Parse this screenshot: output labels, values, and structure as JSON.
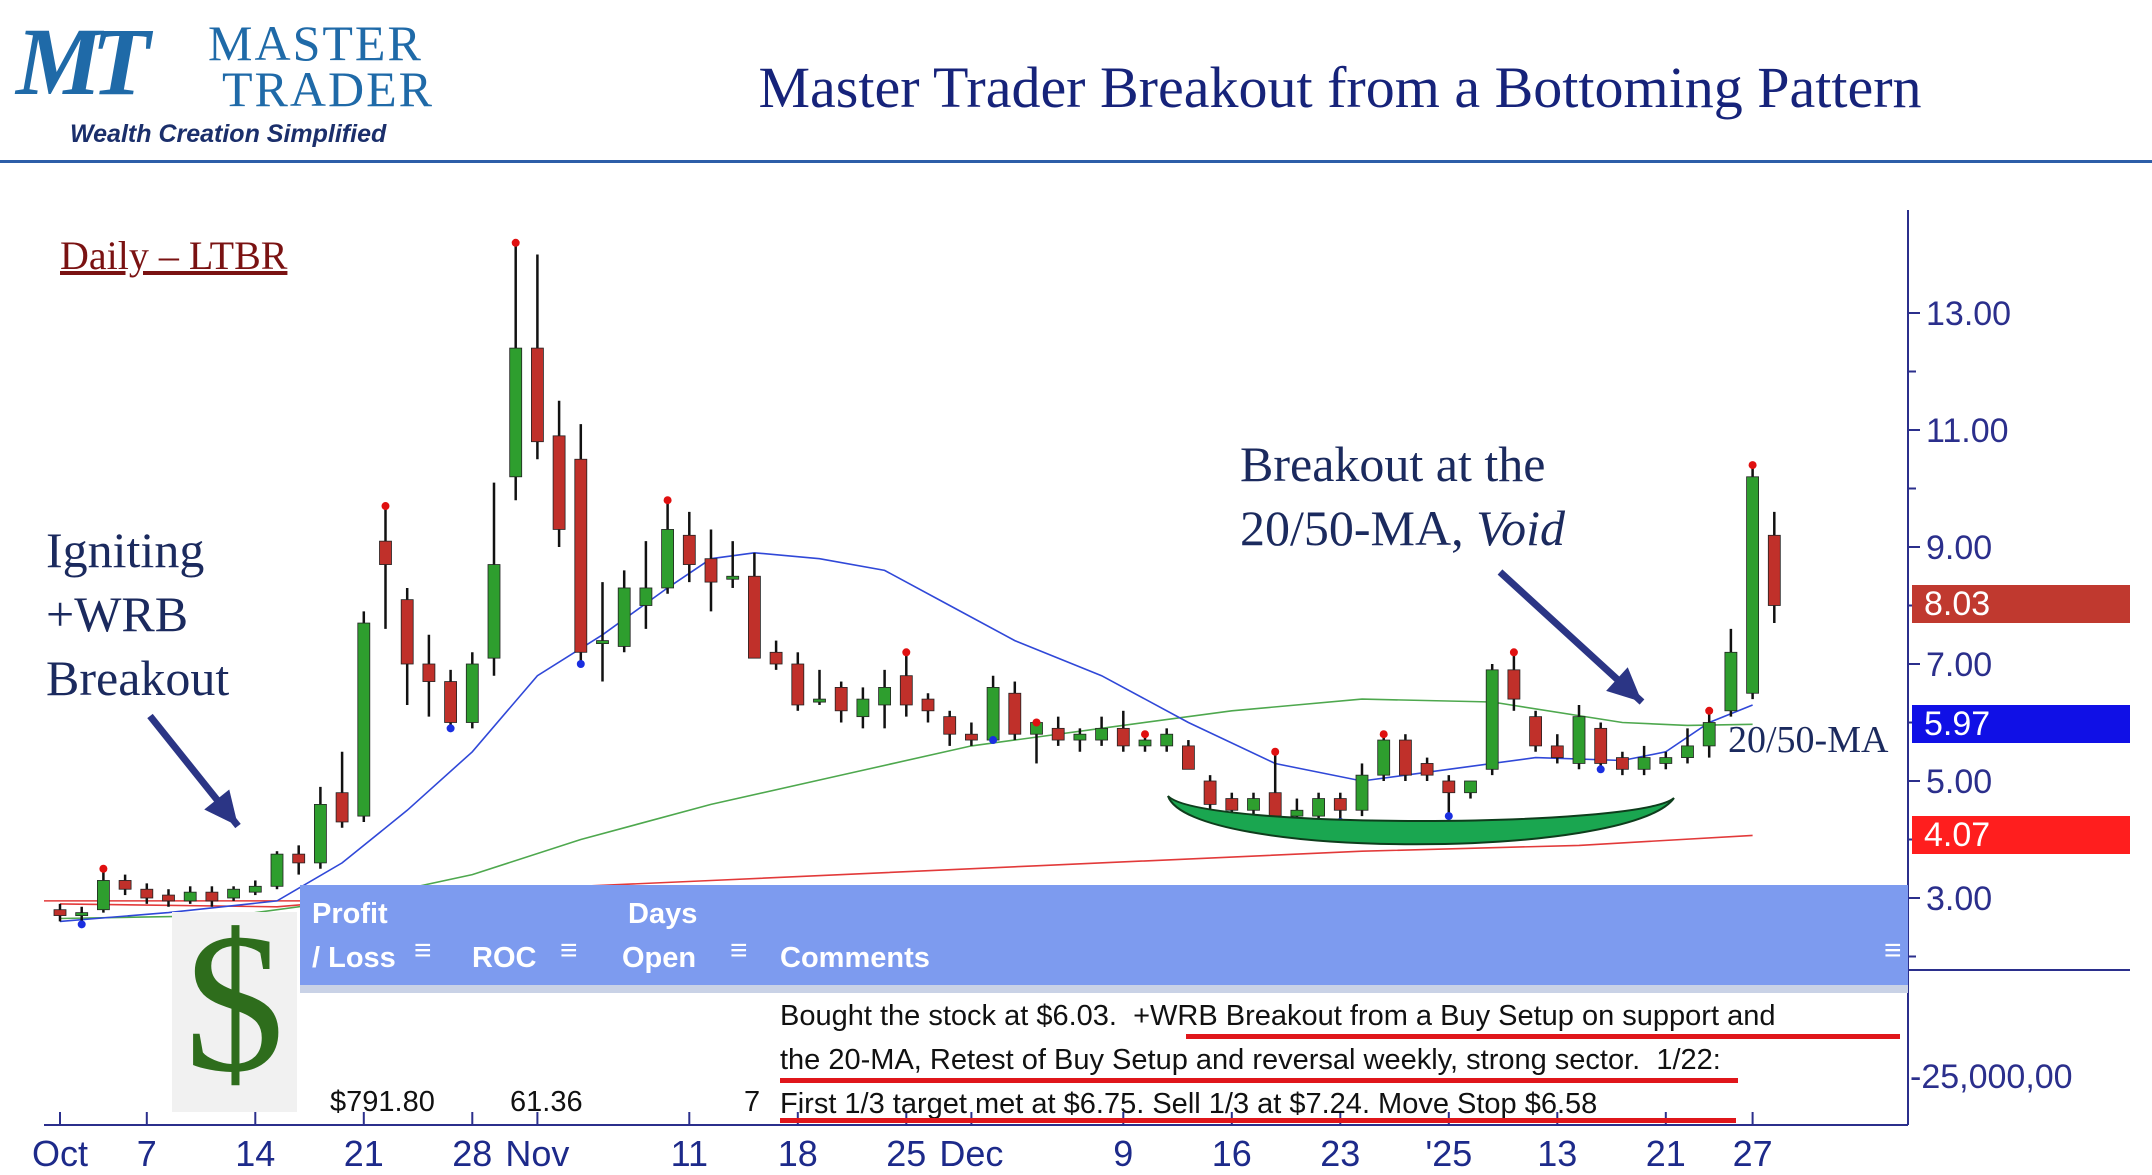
{
  "logo": {
    "mark": "MT",
    "word1": "MASTER",
    "word2": "TRADER",
    "tagline": "Wealth Creation Simplified",
    "color": "#1f6aa8"
  },
  "title": "Master Trader Breakout from a Bottoming Pattern",
  "chart_label": "Daily – LTBR",
  "annotations": {
    "igniting": [
      "Igniting",
      "+WRB",
      "Breakout"
    ],
    "breakout_line1": "Breakout at the",
    "breakout_line2_prefix": "20/50-MA, ",
    "breakout_line2_italic": "Void",
    "ma_label": "20/50-MA"
  },
  "table": {
    "headers": {
      "profit_line1": "Profit",
      "profit_line2": "/ Loss",
      "roc": "ROC",
      "days_line1": "Days",
      "days_line2": "Open",
      "comments": "Comments"
    },
    "row": {
      "profit": "$791.80",
      "roc": "61.36",
      "days": "7",
      "comment_line1_a": "Bought the stock at $6.03.  ",
      "comment_line1_b": "+WRB Breakout from a Buy Setup on support and",
      "comment_line2_a": "the 20-MA, Retest of Buy Setup and reversal weekly, strong sector.",
      "comment_line2_b": "  1/22:",
      "comment_line3": "First 1/3 target met at $6.75.  Sell 1/3 at $7.24.  Move Stop $6.58"
    },
    "header_color": "#7d9bef",
    "dollar_icon": "$",
    "dollar_color": "#2e6d1c"
  },
  "price_badges": [
    {
      "label": "8.03",
      "value": 8.03,
      "color": "#c0392f"
    },
    {
      "label": "5.97",
      "value": 5.97,
      "color": "#1010e6"
    },
    {
      "label": "4.07",
      "value": 4.07,
      "color": "#ff1e1e"
    }
  ],
  "chart_data": {
    "type": "candlestick",
    "ticker": "LTBR",
    "timeframe": "Daily",
    "y_ticks": [
      "13.00",
      "11.00",
      "9.00",
      "7.00",
      "5.00",
      "3.00"
    ],
    "y_tick_values": [
      13,
      11,
      9,
      7,
      5,
      3
    ],
    "bottom_axis_label": "-25,000,00",
    "ylim": [
      2.3,
      14.3
    ],
    "x_tick_labels": [
      "Oct",
      "7",
      "14",
      "21",
      "28",
      "Nov",
      "11",
      "18",
      "25",
      "Dec",
      "9",
      "16",
      "23",
      "'25",
      "13",
      "21",
      "27"
    ],
    "x_tick_index": [
      0,
      4,
      9,
      14,
      19,
      22,
      29,
      34,
      39,
      42,
      49,
      54,
      59,
      64,
      69,
      74,
      78
    ],
    "colors": {
      "up": "#2e9e2e",
      "down": "#c0302a",
      "ma20": "#3048d8",
      "ma50": "#4ea84e",
      "ma200": "#e23a3a",
      "bowl": "#1aa650",
      "arrow": "#2b3585"
    },
    "candles": [
      {
        "o": 2.8,
        "h": 2.9,
        "l": 2.6,
        "c": 2.7
      },
      {
        "o": 2.7,
        "h": 2.85,
        "l": 2.55,
        "c": 2.75
      },
      {
        "o": 2.8,
        "h": 3.5,
        "l": 2.75,
        "c": 3.3
      },
      {
        "o": 3.3,
        "h": 3.4,
        "l": 3.05,
        "c": 3.15
      },
      {
        "o": 3.15,
        "h": 3.25,
        "l": 2.9,
        "c": 3.0
      },
      {
        "o": 3.05,
        "h": 3.15,
        "l": 2.85,
        "c": 2.95
      },
      {
        "o": 2.95,
        "h": 3.2,
        "l": 2.9,
        "c": 3.1
      },
      {
        "o": 3.1,
        "h": 3.2,
        "l": 2.85,
        "c": 2.95
      },
      {
        "o": 3.0,
        "h": 3.2,
        "l": 2.95,
        "c": 3.15
      },
      {
        "o": 3.1,
        "h": 3.3,
        "l": 3.05,
        "c": 3.2
      },
      {
        "o": 3.2,
        "h": 3.8,
        "l": 3.15,
        "c": 3.75
      },
      {
        "o": 3.75,
        "h": 3.9,
        "l": 3.4,
        "c": 3.6
      },
      {
        "o": 3.6,
        "h": 4.9,
        "l": 3.5,
        "c": 4.6
      },
      {
        "o": 4.8,
        "h": 5.5,
        "l": 4.2,
        "c": 4.3
      },
      {
        "o": 4.4,
        "h": 7.9,
        "l": 4.3,
        "c": 7.7
      },
      {
        "o": 9.1,
        "h": 9.7,
        "l": 7.6,
        "c": 8.7
      },
      {
        "o": 8.1,
        "h": 8.3,
        "l": 6.3,
        "c": 7.0
      },
      {
        "o": 7.0,
        "h": 7.5,
        "l": 6.1,
        "c": 6.7
      },
      {
        "o": 6.7,
        "h": 6.9,
        "l": 5.9,
        "c": 6.0
      },
      {
        "o": 6.0,
        "h": 7.2,
        "l": 5.9,
        "c": 7.0
      },
      {
        "o": 7.1,
        "h": 10.1,
        "l": 6.8,
        "c": 8.7
      },
      {
        "o": 10.2,
        "h": 14.2,
        "l": 9.8,
        "c": 12.4
      },
      {
        "o": 12.4,
        "h": 14.0,
        "l": 10.5,
        "c": 10.8
      },
      {
        "o": 10.9,
        "h": 11.5,
        "l": 9.0,
        "c": 9.3
      },
      {
        "o": 10.5,
        "h": 11.1,
        "l": 7.0,
        "c": 7.2
      },
      {
        "o": 7.4,
        "h": 8.4,
        "l": 6.7,
        "c": 7.4
      },
      {
        "o": 7.3,
        "h": 8.6,
        "l": 7.2,
        "c": 8.3
      },
      {
        "o": 8.0,
        "h": 9.1,
        "l": 7.6,
        "c": 8.3
      },
      {
        "o": 8.3,
        "h": 9.8,
        "l": 8.2,
        "c": 9.3
      },
      {
        "o": 9.2,
        "h": 9.6,
        "l": 8.4,
        "c": 8.7
      },
      {
        "o": 8.8,
        "h": 9.3,
        "l": 7.9,
        "c": 8.4
      },
      {
        "o": 8.5,
        "h": 9.1,
        "l": 8.3,
        "c": 8.5
      },
      {
        "o": 8.5,
        "h": 8.9,
        "l": 7.1,
        "c": 7.1
      },
      {
        "o": 7.2,
        "h": 7.4,
        "l": 6.9,
        "c": 7.0
      },
      {
        "o": 7.0,
        "h": 7.2,
        "l": 6.2,
        "c": 6.3
      },
      {
        "o": 6.4,
        "h": 6.9,
        "l": 6.3,
        "c": 6.4
      },
      {
        "o": 6.6,
        "h": 6.7,
        "l": 6.0,
        "c": 6.2
      },
      {
        "o": 6.1,
        "h": 6.6,
        "l": 5.9,
        "c": 6.4
      },
      {
        "o": 6.3,
        "h": 6.9,
        "l": 5.9,
        "c": 6.6
      },
      {
        "o": 6.8,
        "h": 7.2,
        "l": 6.1,
        "c": 6.3
      },
      {
        "o": 6.4,
        "h": 6.5,
        "l": 6.0,
        "c": 6.2
      },
      {
        "o": 6.1,
        "h": 6.2,
        "l": 5.6,
        "c": 5.8
      },
      {
        "o": 5.8,
        "h": 6.0,
        "l": 5.6,
        "c": 5.7
      },
      {
        "o": 5.7,
        "h": 6.8,
        "l": 5.7,
        "c": 6.6
      },
      {
        "o": 6.5,
        "h": 6.7,
        "l": 5.7,
        "c": 5.8
      },
      {
        "o": 5.8,
        "h": 6.0,
        "l": 5.3,
        "c": 6.0
      },
      {
        "o": 5.9,
        "h": 6.1,
        "l": 5.6,
        "c": 5.7
      },
      {
        "o": 5.7,
        "h": 5.9,
        "l": 5.5,
        "c": 5.8
      },
      {
        "o": 5.7,
        "h": 6.1,
        "l": 5.6,
        "c": 5.9
      },
      {
        "o": 5.9,
        "h": 6.2,
        "l": 5.5,
        "c": 5.6
      },
      {
        "o": 5.6,
        "h": 5.8,
        "l": 5.5,
        "c": 5.7
      },
      {
        "o": 5.6,
        "h": 5.9,
        "l": 5.5,
        "c": 5.8
      },
      {
        "o": 5.6,
        "h": 5.7,
        "l": 5.2,
        "c": 5.2
      },
      {
        "o": 5.0,
        "h": 5.1,
        "l": 4.5,
        "c": 4.6
      },
      {
        "o": 4.7,
        "h": 4.8,
        "l": 4.4,
        "c": 4.5
      },
      {
        "o": 4.5,
        "h": 4.8,
        "l": 4.4,
        "c": 4.7
      },
      {
        "o": 4.8,
        "h": 5.5,
        "l": 4.4,
        "c": 4.4
      },
      {
        "o": 4.4,
        "h": 4.7,
        "l": 4.3,
        "c": 4.5
      },
      {
        "o": 4.4,
        "h": 4.8,
        "l": 4.1,
        "c": 4.7
      },
      {
        "o": 4.7,
        "h": 4.8,
        "l": 4.3,
        "c": 4.5
      },
      {
        "o": 4.5,
        "h": 5.3,
        "l": 4.4,
        "c": 5.1
      },
      {
        "o": 5.1,
        "h": 5.8,
        "l": 5.0,
        "c": 5.7
      },
      {
        "o": 5.7,
        "h": 5.8,
        "l": 5.0,
        "c": 5.1
      },
      {
        "o": 5.3,
        "h": 5.4,
        "l": 5.0,
        "c": 5.1
      },
      {
        "o": 5.0,
        "h": 5.1,
        "l": 4.4,
        "c": 4.8
      },
      {
        "o": 4.8,
        "h": 5.0,
        "l": 4.7,
        "c": 5.0
      },
      {
        "o": 5.2,
        "h": 7.0,
        "l": 5.1,
        "c": 6.9
      },
      {
        "o": 6.9,
        "h": 7.2,
        "l": 6.2,
        "c": 6.4
      },
      {
        "o": 6.1,
        "h": 6.2,
        "l": 5.5,
        "c": 5.6
      },
      {
        "o": 5.6,
        "h": 5.8,
        "l": 5.3,
        "c": 5.4
      },
      {
        "o": 5.3,
        "h": 6.3,
        "l": 5.2,
        "c": 6.1
      },
      {
        "o": 5.9,
        "h": 6.0,
        "l": 5.2,
        "c": 5.3
      },
      {
        "o": 5.4,
        "h": 5.5,
        "l": 5.1,
        "c": 5.2
      },
      {
        "o": 5.2,
        "h": 5.6,
        "l": 5.1,
        "c": 5.4
      },
      {
        "o": 5.3,
        "h": 5.5,
        "l": 5.2,
        "c": 5.4
      },
      {
        "o": 5.4,
        "h": 5.9,
        "l": 5.3,
        "c": 5.6
      },
      {
        "o": 5.6,
        "h": 6.2,
        "l": 5.4,
        "c": 6.0
      },
      {
        "o": 6.2,
        "h": 7.6,
        "l": 6.1,
        "c": 7.2
      },
      {
        "o": 6.5,
        "h": 10.4,
        "l": 6.4,
        "c": 10.2
      },
      {
        "o": 9.2,
        "h": 9.6,
        "l": 7.7,
        "c": 8.0
      }
    ],
    "ma20": [
      [
        0,
        2.6
      ],
      [
        5,
        2.75
      ],
      [
        10,
        2.95
      ],
      [
        13,
        3.6
      ],
      [
        16,
        4.5
      ],
      [
        19,
        5.5
      ],
      [
        22,
        6.8
      ],
      [
        25,
        7.5
      ],
      [
        28,
        8.3
      ],
      [
        30,
        8.8
      ],
      [
        32,
        8.9
      ],
      [
        35,
        8.8
      ],
      [
        38,
        8.6
      ],
      [
        41,
        8.0
      ],
      [
        44,
        7.4
      ],
      [
        48,
        6.8
      ],
      [
        52,
        6.0
      ],
      [
        56,
        5.3
      ],
      [
        60,
        5.0
      ],
      [
        64,
        5.2
      ],
      [
        68,
        5.4
      ],
      [
        72,
        5.35
      ],
      [
        74,
        5.5
      ],
      [
        76,
        6.0
      ],
      [
        78,
        6.3
      ]
    ],
    "ma50": [
      [
        0,
        2.65
      ],
      [
        8,
        2.7
      ],
      [
        14,
        3.0
      ],
      [
        19,
        3.4
      ],
      [
        24,
        4.0
      ],
      [
        30,
        4.6
      ],
      [
        36,
        5.1
      ],
      [
        42,
        5.6
      ],
      [
        48,
        5.9
      ],
      [
        54,
        6.2
      ],
      [
        60,
        6.4
      ],
      [
        66,
        6.35
      ],
      [
        72,
        6.0
      ],
      [
        75,
        5.95
      ],
      [
        78,
        5.97
      ]
    ],
    "ma200": [
      [
        0,
        2.9
      ],
      [
        10,
        2.85
      ],
      [
        18,
        3.1
      ],
      [
        30,
        3.3
      ],
      [
        45,
        3.55
      ],
      [
        60,
        3.8
      ],
      [
        70,
        3.9
      ],
      [
        78,
        4.07
      ]
    ],
    "ref_line": {
      "value": 2.95,
      "color": "#e23a3a"
    }
  }
}
